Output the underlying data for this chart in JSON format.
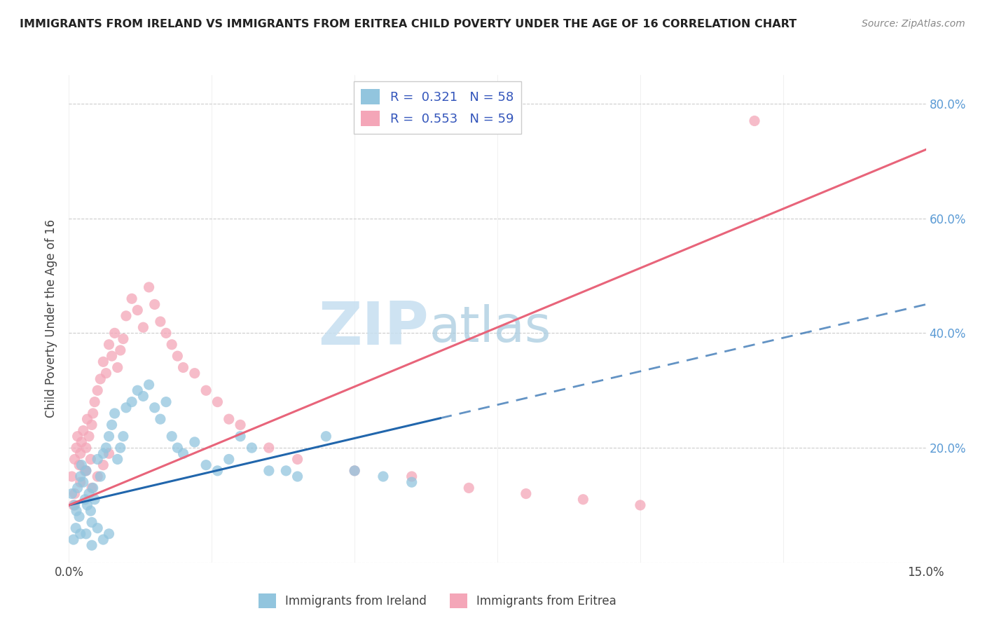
{
  "title": "IMMIGRANTS FROM IRELAND VS IMMIGRANTS FROM ERITREA CHILD POVERTY UNDER THE AGE OF 16 CORRELATION CHART",
  "source": "Source: ZipAtlas.com",
  "ylabel": "Child Poverty Under the Age of 16",
  "xmin": 0.0,
  "xmax": 0.15,
  "ymin": 0.0,
  "ymax": 0.85,
  "yticks": [
    0.0,
    0.2,
    0.4,
    0.6,
    0.8
  ],
  "ytick_labels": [
    "",
    "20.0%",
    "40.0%",
    "60.0%",
    "80.0%"
  ],
  "xticks": [
    0.0,
    0.025,
    0.05,
    0.075,
    0.1,
    0.125,
    0.15
  ],
  "xtick_labels": [
    "0.0%",
    "",
    "",
    "",
    "",
    "",
    "15.0%"
  ],
  "ireland_R": 0.321,
  "ireland_N": 58,
  "eritrea_R": 0.553,
  "eritrea_N": 59,
  "ireland_color": "#92c5de",
  "eritrea_color": "#f4a6b8",
  "ireland_line_color": "#2166ac",
  "eritrea_line_color": "#e8647a",
  "watermark_zip": "ZIP",
  "watermark_atlas": "atlas",
  "legend_label_ireland": "Immigrants from Ireland",
  "legend_label_eritrea": "Immigrants from Eritrea",
  "ireland_line_x0": 0.0,
  "ireland_line_y0": 0.1,
  "ireland_line_x1": 0.15,
  "ireland_line_y1": 0.45,
  "eritrea_line_x0": 0.0,
  "eritrea_line_y0": 0.1,
  "eritrea_line_x1": 0.15,
  "eritrea_line_y1": 0.72,
  "ireland_x": [
    0.0005,
    0.001,
    0.0013,
    0.0015,
    0.0018,
    0.002,
    0.0022,
    0.0025,
    0.0028,
    0.003,
    0.0032,
    0.0035,
    0.0038,
    0.004,
    0.0042,
    0.0045,
    0.005,
    0.0055,
    0.006,
    0.0065,
    0.007,
    0.0075,
    0.008,
    0.0085,
    0.009,
    0.0095,
    0.01,
    0.011,
    0.012,
    0.013,
    0.014,
    0.015,
    0.016,
    0.017,
    0.018,
    0.019,
    0.02,
    0.022,
    0.024,
    0.026,
    0.028,
    0.03,
    0.032,
    0.035,
    0.038,
    0.04,
    0.045,
    0.05,
    0.055,
    0.06,
    0.0008,
    0.0012,
    0.002,
    0.003,
    0.004,
    0.005,
    0.006,
    0.007
  ],
  "ireland_y": [
    0.12,
    0.1,
    0.09,
    0.13,
    0.08,
    0.15,
    0.17,
    0.14,
    0.11,
    0.16,
    0.1,
    0.12,
    0.09,
    0.07,
    0.13,
    0.11,
    0.18,
    0.15,
    0.19,
    0.2,
    0.22,
    0.24,
    0.26,
    0.18,
    0.2,
    0.22,
    0.27,
    0.28,
    0.3,
    0.29,
    0.31,
    0.27,
    0.25,
    0.28,
    0.22,
    0.2,
    0.19,
    0.21,
    0.17,
    0.16,
    0.18,
    0.22,
    0.2,
    0.16,
    0.16,
    0.15,
    0.22,
    0.16,
    0.15,
    0.14,
    0.04,
    0.06,
    0.05,
    0.05,
    0.03,
    0.06,
    0.04,
    0.05
  ],
  "eritrea_x": [
    0.0005,
    0.001,
    0.0013,
    0.0015,
    0.0018,
    0.002,
    0.0022,
    0.0025,
    0.0028,
    0.003,
    0.0032,
    0.0035,
    0.0038,
    0.004,
    0.0042,
    0.0045,
    0.005,
    0.0055,
    0.006,
    0.0065,
    0.007,
    0.0075,
    0.008,
    0.0085,
    0.009,
    0.0095,
    0.01,
    0.011,
    0.012,
    0.013,
    0.014,
    0.015,
    0.016,
    0.017,
    0.018,
    0.019,
    0.02,
    0.022,
    0.024,
    0.026,
    0.028,
    0.03,
    0.035,
    0.04,
    0.05,
    0.06,
    0.07,
    0.08,
    0.09,
    0.1,
    0.0008,
    0.001,
    0.002,
    0.003,
    0.004,
    0.005,
    0.006,
    0.007,
    0.12
  ],
  "eritrea_y": [
    0.15,
    0.18,
    0.2,
    0.22,
    0.17,
    0.19,
    0.21,
    0.23,
    0.16,
    0.2,
    0.25,
    0.22,
    0.18,
    0.24,
    0.26,
    0.28,
    0.3,
    0.32,
    0.35,
    0.33,
    0.38,
    0.36,
    0.4,
    0.34,
    0.37,
    0.39,
    0.43,
    0.46,
    0.44,
    0.41,
    0.48,
    0.45,
    0.42,
    0.4,
    0.38,
    0.36,
    0.34,
    0.33,
    0.3,
    0.28,
    0.25,
    0.24,
    0.2,
    0.18,
    0.16,
    0.15,
    0.13,
    0.12,
    0.11,
    0.1,
    0.1,
    0.12,
    0.14,
    0.16,
    0.13,
    0.15,
    0.17,
    0.19,
    0.77
  ]
}
